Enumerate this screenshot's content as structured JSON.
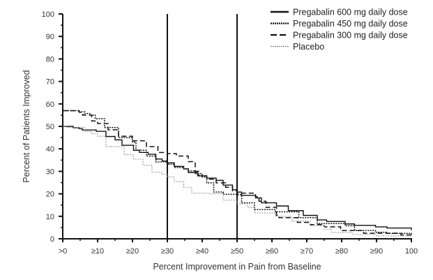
{
  "chart_data": {
    "type": "line",
    "title": "",
    "xlabel": "Percent Improvement in Pain from Baseline",
    "ylabel": "Percent of Patients Improved",
    "xlim": [
      0,
      100
    ],
    "ylim": [
      0,
      100
    ],
    "grid": false,
    "legend_position": "top-right",
    "x_tick_values": [
      0,
      10,
      20,
      30,
      40,
      50,
      60,
      70,
      80,
      90,
      100
    ],
    "x_tick_labels": [
      ">0",
      "≥10",
      "≥20",
      "≥30",
      "≥40",
      "≥50",
      "≥60",
      "≥70",
      "≥80",
      "≥90",
      "100"
    ],
    "y_tick_values": [
      0,
      10,
      20,
      30,
      40,
      50,
      60,
      70,
      80,
      90,
      100
    ],
    "y_tick_labels": [
      "0",
      "10",
      "20",
      "30",
      "40",
      "50",
      "60",
      "70",
      "80",
      "90",
      "100"
    ],
    "reference_lines_x": [
      30,
      50
    ],
    "series": [
      {
        "name": "Pregabalin 600 mg daily dose",
        "style": "solid",
        "color": "#111111",
        "x": [
          0,
          3,
          4.7,
          5.6,
          9.6,
          12.4,
          15,
          17,
          20.3,
          22,
          24.5,
          26.7,
          28.5,
          30,
          32,
          34.7,
          36,
          38.7,
          41.3,
          44,
          46,
          48.7,
          50,
          51.3,
          55.3,
          57,
          61.3,
          64.7,
          69,
          73,
          75.7,
          81,
          83.7,
          89.7,
          93,
          100
        ],
        "y": [
          50,
          49.4,
          49,
          48.4,
          47.8,
          45.5,
          44,
          41.6,
          39.4,
          38.4,
          37.6,
          35.5,
          34.6,
          33.8,
          32.2,
          31.1,
          29.5,
          28,
          27,
          26,
          23.9,
          21.8,
          20.8,
          19.3,
          18.2,
          16,
          14.6,
          12.5,
          10.4,
          8.4,
          7.7,
          6.6,
          6,
          5.3,
          4.8,
          3.9
        ]
      },
      {
        "name": "Pregabalin 450 mg daily dose",
        "style": "dotted",
        "color": "#111111",
        "x": [
          0,
          4.7,
          6.3,
          8,
          9.3,
          12,
          16,
          20,
          21,
          24,
          26.7,
          30,
          32,
          34.7,
          36,
          38,
          40,
          41.3,
          43.3,
          46,
          50,
          51.3,
          55,
          61,
          67.7,
          73,
          81,
          83.7,
          89.7,
          93,
          100
        ],
        "y": [
          57,
          56.5,
          55.7,
          55,
          53.4,
          49.5,
          45,
          43,
          39.4,
          36.8,
          34.2,
          33.2,
          31.7,
          31.1,
          30.2,
          29,
          27.5,
          24.9,
          20.8,
          19.8,
          19.6,
          16,
          13,
          12,
          9.4,
          6.8,
          5.8,
          3.7,
          2.9,
          2.4,
          1.9
        ]
      },
      {
        "name": "Pregabalin 300 mg daily dose",
        "style": "dashed",
        "color": "#111111",
        "x": [
          0,
          4.7,
          5.7,
          8.3,
          10,
          13,
          16,
          20,
          24,
          27.3,
          30,
          32.6,
          36,
          38,
          39,
          41.3,
          44,
          46.7,
          48.7,
          50,
          55.3,
          56.3,
          58.3,
          61.3,
          62,
          67.3,
          71,
          75,
          79.7,
          86.3,
          97,
          100
        ],
        "y": [
          57,
          56.3,
          55,
          52.4,
          51.3,
          48.5,
          45.6,
          43.6,
          41,
          38.4,
          37.9,
          36.8,
          34.3,
          30,
          28,
          26.5,
          24.9,
          22.9,
          21.3,
          20.3,
          18.7,
          16.7,
          14,
          10.5,
          9.4,
          7.3,
          6.3,
          5.3,
          3.7,
          2.5,
          1.7,
          1.2
        ]
      },
      {
        "name": "Placebo",
        "style": "dotted",
        "color": "#9a9a9a",
        "x": [
          0,
          1,
          6.3,
          8.3,
          10,
          12.4,
          17.6,
          20.3,
          23,
          25.6,
          28.5,
          30,
          32,
          34.7,
          37,
          42,
          46,
          50,
          53,
          55,
          61,
          65.7,
          71,
          75,
          77,
          83,
          90,
          100
        ],
        "y": [
          50,
          49.6,
          47.7,
          46.7,
          45.6,
          41,
          37.4,
          35.4,
          32.7,
          29.6,
          28.6,
          27.5,
          25.5,
          22.9,
          20.3,
          20,
          17.2,
          15.6,
          14,
          11.5,
          10,
          7.9,
          5.9,
          4.3,
          2.8,
          1.9,
          1.3,
          0.9
        ]
      }
    ]
  }
}
